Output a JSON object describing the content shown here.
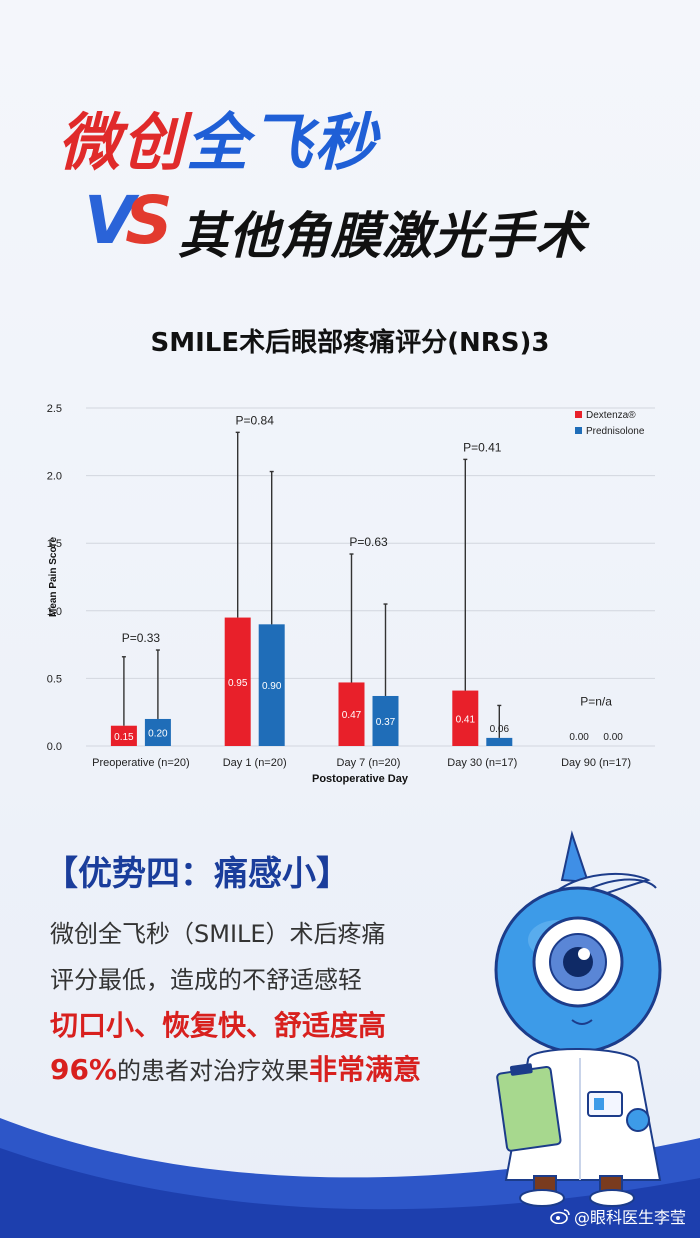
{
  "headline": {
    "part1": "微创",
    "part2": "全飞秒",
    "vs_v": "V",
    "vs_s": "S",
    "part3": "其他角膜激光手术"
  },
  "chart_title": "SMILE术后眼部疼痛评分(NRS)3",
  "chart_data": {
    "type": "bar",
    "ylabel": "Mean Pain Score",
    "xlabel": "Postoperative Day",
    "ylim": [
      0,
      2.5
    ],
    "yticks": [
      "0.0",
      "0.5",
      "1.0",
      "1.5",
      "2.0",
      "2.5"
    ],
    "categories": [
      "Preoperative (n=20)",
      "Day 1 (n=20)",
      "Day 7 (n=20)",
      "Day 30 (n=17)",
      "Day 90 (n=17)"
    ],
    "p_values": [
      "P=0.33",
      "P=0.84",
      "P=0.63",
      "P=0.41",
      "P=n/a"
    ],
    "series": [
      {
        "name": "Dextenza®",
        "color": "#e8202a",
        "values": [
          0.15,
          0.95,
          0.47,
          0.41,
          0.0
        ],
        "labels": [
          "0.15",
          "0.95",
          "0.47",
          "0.41",
          "0.00"
        ],
        "error_top": [
          0.66,
          2.32,
          1.42,
          2.12,
          0.0
        ]
      },
      {
        "name": "Prednisolone",
        "color": "#1f6db8",
        "values": [
          0.2,
          0.9,
          0.37,
          0.06,
          0.0
        ],
        "labels": [
          "0.20",
          "0.90",
          "0.37",
          "0.06",
          "0.00"
        ],
        "error_top": [
          0.71,
          2.03,
          1.05,
          0.3,
          0.0
        ]
      }
    ],
    "legend": "top-right",
    "grid": true
  },
  "advantage_title": "【优势四：痛感小】",
  "body": {
    "line1": "微创全飞秒（SMILE）术后疼痛",
    "line2": "评分最低，造成的不舒适感轻",
    "highlight1": "切口小、恢复快、舒适度高",
    "line4_a": "96%",
    "line4_b": "的患者对治疗效果",
    "line4_c": "非常满意"
  },
  "watermark": "@眼科医生李莹"
}
